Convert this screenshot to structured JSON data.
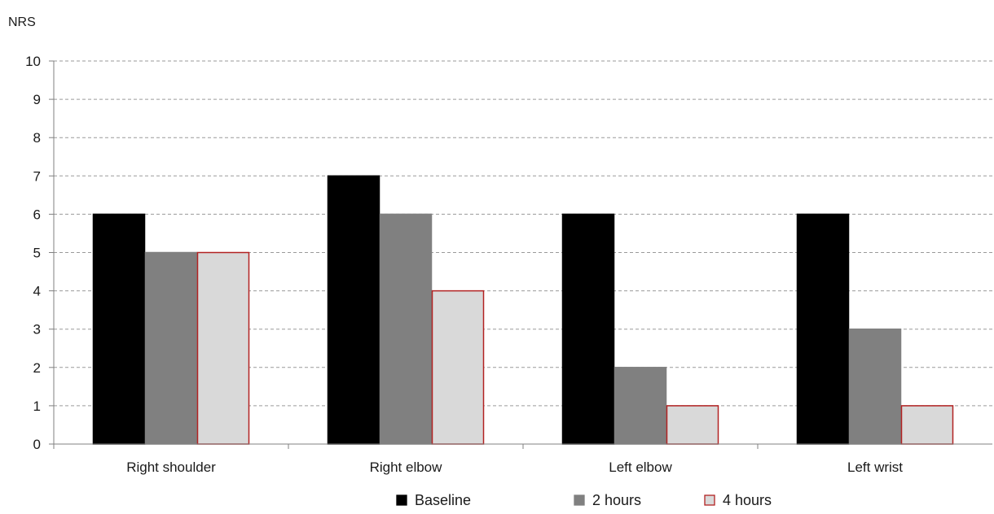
{
  "chart_data": {
    "type": "bar",
    "ylabel": "NRS",
    "xlabel": "",
    "title": "",
    "ylim": [
      0,
      10
    ],
    "yticks": [
      0,
      1,
      2,
      3,
      4,
      5,
      6,
      7,
      8,
      9,
      10
    ],
    "grid": "horizontal dashed",
    "legend_position": "bottom",
    "categories": [
      "Right shoulder",
      "Right elbow",
      "Left elbow",
      "Left wrist"
    ],
    "series": [
      {
        "name": "Baseline",
        "values": [
          6,
          7,
          6,
          6
        ],
        "color": "#000000",
        "stroke": "#000000"
      },
      {
        "name": "2 hours",
        "values": [
          5,
          6,
          2,
          3
        ],
        "color": "#808080",
        "stroke": "#808080"
      },
      {
        "name": "4 hours",
        "values": [
          5,
          4,
          1,
          1
        ],
        "color": "#d9d9d9",
        "stroke": "#b22222"
      }
    ]
  }
}
